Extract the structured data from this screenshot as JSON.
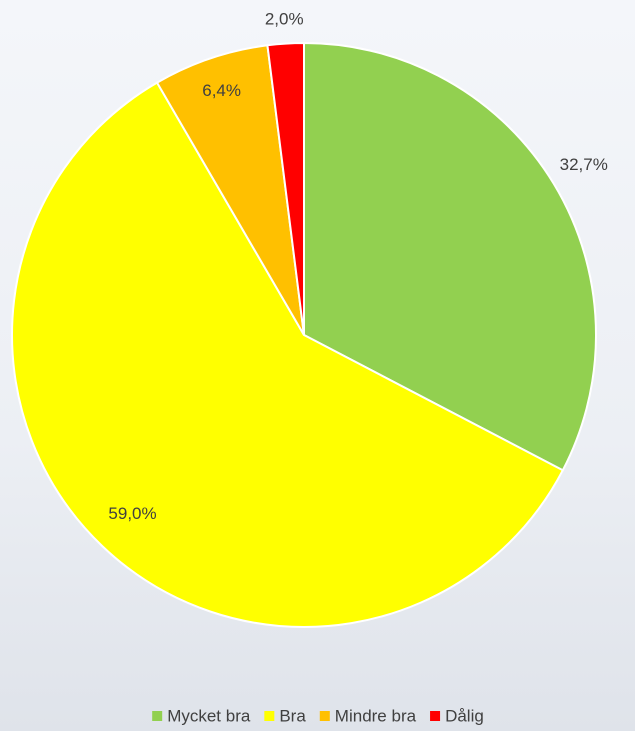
{
  "chart_data": {
    "type": "pie",
    "categories": [
      "Mycket bra",
      "Bra",
      "Mindre bra",
      "Dålig"
    ],
    "values": [
      32.7,
      59.0,
      6.4,
      2.0
    ],
    "value_labels": [
      "32,7%",
      "59,0%",
      "6,4%",
      "2,0%"
    ],
    "colors": [
      "#92d050",
      "#ffff00",
      "#ffc000",
      "#ff0000"
    ],
    "legend": "bottom"
  }
}
